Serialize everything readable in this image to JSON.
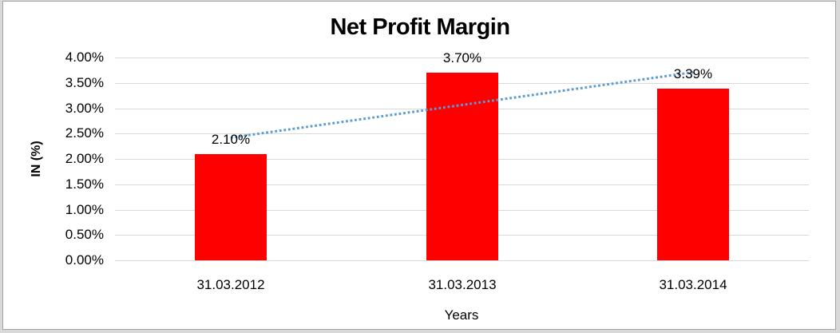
{
  "chart_data": {
    "type": "bar",
    "title": "Net Profit Margin",
    "xlabel": "Years",
    "ylabel": "IN (%)",
    "categories": [
      "31.03.2012",
      "31.03.2013",
      "31.03.2014"
    ],
    "values": [
      2.1,
      3.7,
      3.39
    ],
    "data_labels": [
      "2.10%",
      "3.70%",
      "3.39%"
    ],
    "ylim": [
      0,
      4.0
    ],
    "ytick_step": 0.5,
    "ytick_labels": [
      "0.00%",
      "0.50%",
      "1.00%",
      "1.50%",
      "2.00%",
      "2.50%",
      "3.00%",
      "3.50%",
      "4.00%"
    ],
    "grid": true,
    "legend": "none",
    "trendline": {
      "type": "linear",
      "style": "dotted"
    },
    "colors": {
      "bar": "#ff0000",
      "trendline": "#5b9bd5",
      "gridline": "#d9d9d9",
      "text": "#000000",
      "plot_background": "#ffffff",
      "outer_background": "#d9d9d9",
      "chart_border": "#a3a3a3"
    }
  }
}
